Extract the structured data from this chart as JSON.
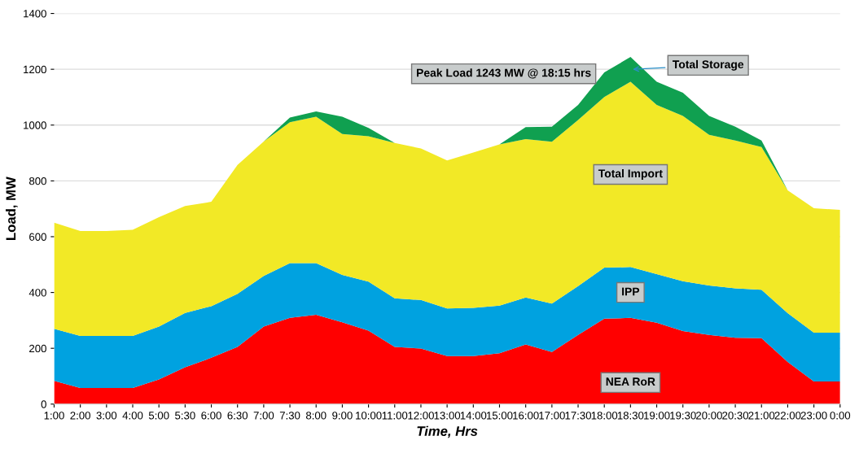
{
  "chart_data": {
    "type": "area",
    "stacked": true,
    "categories": [
      "1:00",
      "2:00",
      "3:00",
      "4:00",
      "5:00",
      "5:30",
      "6:00",
      "6:30",
      "7:00",
      "7:30",
      "8:00",
      "9:00",
      "10:00",
      "11:00",
      "12:00",
      "13:00",
      "14:00",
      "15:00",
      "16:00",
      "17:00",
      "17:30",
      "18:00",
      "18:30",
      "19:00",
      "19:30",
      "20:00",
      "20:30",
      "21:00",
      "22:00",
      "23:00",
      "0:00"
    ],
    "series": [
      {
        "name": "NEA RoR",
        "color": "#ff0000",
        "values": [
          83,
          58,
          58,
          58,
          88,
          132,
          166,
          205,
          278,
          309,
          320,
          293,
          263,
          205,
          199,
          172,
          172,
          182,
          214,
          187,
          248,
          306,
          309,
          292,
          262,
          248,
          238,
          236,
          151,
          81,
          81
        ]
      },
      {
        "name": "IPP",
        "color": "#00a2e0",
        "values": [
          187,
          186,
          186,
          186,
          190,
          195,
          185,
          190,
          181,
          196,
          185,
          170,
          176,
          174,
          174,
          171,
          173,
          171,
          168,
          173,
          175,
          183,
          182,
          174,
          178,
          177,
          177,
          174,
          175,
          175,
          175
        ]
      },
      {
        "name": "Total Import",
        "color": "#f2e926",
        "values": [
          380,
          376,
          376,
          381,
          392,
          383,
          374,
          462,
          482,
          505,
          525,
          505,
          521,
          557,
          543,
          530,
          557,
          578,
          568,
          580,
          595,
          612,
          664,
          606,
          593,
          540,
          530,
          511,
          440,
          446,
          440
        ]
      },
      {
        "name": "Total Storage",
        "color": "#10a050",
        "values": [
          0,
          0,
          0,
          0,
          0,
          0,
          0,
          0,
          0,
          17,
          19,
          62,
          30,
          0,
          0,
          0,
          0,
          0,
          43,
          54,
          54,
          88,
          89,
          83,
          83,
          68,
          49,
          24,
          0,
          0,
          0
        ]
      }
    ],
    "xlabel": "Time, Hrs",
    "ylabel": "Load, MW",
    "ylim": [
      0,
      1400
    ],
    "yticks": [
      0,
      200,
      400,
      600,
      800,
      1000,
      1200,
      1400
    ],
    "annotations": [
      "Peak Load 1243 MW @ 18:15 hrs"
    ],
    "grid": "y"
  }
}
